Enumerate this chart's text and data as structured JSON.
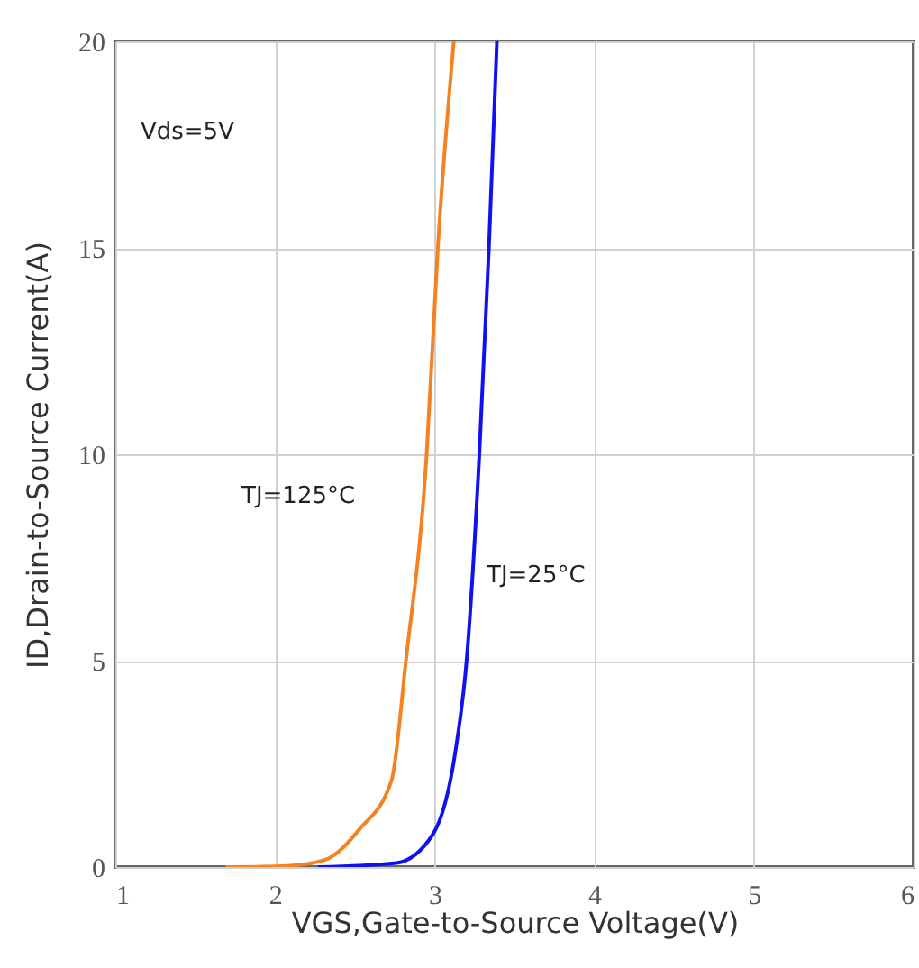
{
  "chart_data": {
    "type": "line",
    "xlabel": "VGS,Gate-to-Source Voltage(V)",
    "ylabel": "ID,Drain-to-Source Current(A)",
    "xlim": [
      1,
      6
    ],
    "xticks": [
      1,
      2,
      3,
      4,
      5,
      6
    ],
    "ylim": [
      0,
      20
    ],
    "yticks": [
      0,
      5,
      10,
      15,
      20
    ],
    "grid": true,
    "legend": false,
    "marker": "none",
    "line_style": "solid",
    "annotations": [
      "Vds=5V"
    ],
    "series": [
      {
        "name": "TJ=125°C",
        "color": "#f58220",
        "x": [
          1.69,
          2.08,
          2.31,
          2.53,
          2.73,
          2.82,
          2.95,
          3.02,
          3.12
        ],
        "values": [
          0,
          0.03,
          0.17,
          0.92,
          2.1,
          5,
          10,
          15,
          20
        ]
      },
      {
        "name": "TJ=25°C",
        "color": "#1010f0",
        "x": [
          2.27,
          2.76,
          2.99,
          3.13,
          3.2,
          3.28,
          3.34,
          3.39
        ],
        "values": [
          0,
          0.1,
          0.8,
          2.8,
          5,
          10,
          15,
          20
        ]
      }
    ]
  }
}
